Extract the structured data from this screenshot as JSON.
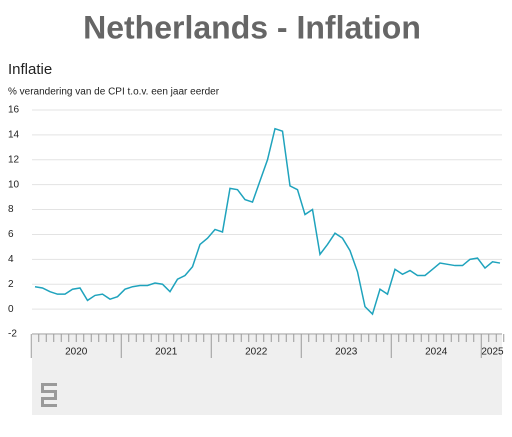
{
  "chart_data": {
    "type": "line",
    "title": "Netherlands - Inflation",
    "subtitle": "Inflatie",
    "y_label": "% verandering van de CPI t.o.v. een jaar eerder",
    "categories": [
      null,
      null,
      null,
      null,
      null,
      null,
      null,
      null,
      null,
      null,
      null,
      null,
      null,
      null,
      null,
      null,
      null,
      null,
      null,
      null,
      null,
      null,
      null,
      null,
      null,
      null,
      null,
      null,
      null,
      null,
      null,
      null,
      null,
      null,
      null,
      null,
      null,
      null,
      null,
      null,
      null,
      null,
      null,
      null,
      null,
      null,
      null,
      null,
      null,
      null,
      null,
      null,
      null,
      null,
      null,
      null,
      null,
      null,
      null,
      null,
      null,
      null,
      null
    ],
    "year_labels": [
      "2020",
      "2021",
      "2022",
      "2023",
      "2024",
      "2025"
    ],
    "series": [
      {
        "name": "Inflatie",
        "color": "#1fa3bd",
        "values": [
          1.8,
          1.7,
          1.4,
          1.2,
          1.2,
          1.6,
          1.7,
          0.7,
          1.1,
          1.2,
          0.8,
          1.0,
          1.6,
          1.8,
          1.9,
          1.9,
          2.1,
          2.0,
          1.4,
          2.4,
          2.7,
          3.4,
          5.2,
          5.7,
          6.4,
          6.2,
          9.7,
          9.6,
          8.8,
          8.6,
          10.3,
          12.0,
          14.5,
          14.3,
          9.9,
          9.6,
          7.6,
          8.0,
          4.4,
          5.2,
          6.1,
          5.7,
          4.7,
          3.0,
          0.2,
          -0.4,
          1.6,
          1.2,
          3.2,
          2.8,
          3.1,
          2.7,
          2.7,
          3.2,
          3.7,
          3.6,
          3.5,
          3.5,
          4.0,
          4.1,
          3.3,
          3.8,
          3.7
        ]
      }
    ],
    "ylim": [
      -2,
      16
    ],
    "yticks": [
      -2,
      0,
      2,
      4,
      6,
      8,
      10,
      12,
      14,
      16
    ],
    "grid": true
  }
}
